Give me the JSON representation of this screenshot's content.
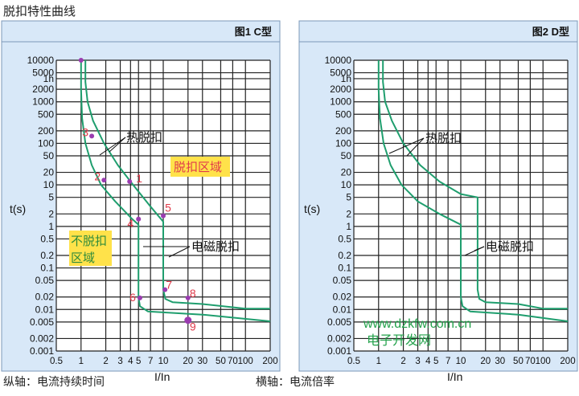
{
  "page": {
    "title": "脱扣特性曲线",
    "caption_left": "纵轴：电流持续时间",
    "caption_right": "横轴：电流倍率",
    "watermark_url": "www.dzkfw.com.cn",
    "watermark_cn": "电子开发网"
  },
  "colors": {
    "panel_bg": "#d8e8f8",
    "panel_border": "#7c98b8",
    "plot_bg": "#ffffff",
    "grid": "#222222",
    "curve": "#1f9e6e",
    "marker": "#9a3cb0",
    "marker_label": "#e03a4a",
    "highlight": "#ffe24a",
    "watermark": "#22a14a"
  },
  "chart_data": [
    {
      "type": "line",
      "title": "图1  C型",
      "xlabel": "I/In",
      "ylabel": "t(s)",
      "x_scale": "log",
      "y_scale": "log",
      "xlim": [
        0.5,
        200
      ],
      "ylim": [
        0.001,
        10000
      ],
      "x_ticks": [
        {
          "v": 0.5,
          "label": "0.5"
        },
        {
          "v": 1,
          "label": "1"
        },
        {
          "v": 2,
          "label": "2"
        },
        {
          "v": 3,
          "label": "3"
        },
        {
          "v": 4,
          "label": "4"
        },
        {
          "v": 5,
          "label": "5"
        },
        {
          "v": 7,
          "label": "7"
        },
        {
          "v": 10,
          "label": "10"
        },
        {
          "v": 20,
          "label": "20"
        },
        {
          "v": 30,
          "label": "30"
        },
        {
          "v": 50,
          "label": "50"
        },
        {
          "v": 70,
          "label": "70"
        },
        {
          "v": 100,
          "label": "100"
        },
        {
          "v": 200,
          "label": "200"
        }
      ],
      "y_ticks": [
        {
          "v": 10000,
          "label": "10000"
        },
        {
          "v": 5000,
          "label": "5000"
        },
        {
          "v": 3600,
          "label": "1h"
        },
        {
          "v": 2000,
          "label": "2000"
        },
        {
          "v": 1000,
          "label": "1000"
        },
        {
          "v": 500,
          "label": "500"
        },
        {
          "v": 200,
          "label": "200"
        },
        {
          "v": 100,
          "label": "100"
        },
        {
          "v": 50,
          "label": "50"
        },
        {
          "v": 20,
          "label": "20"
        },
        {
          "v": 10,
          "label": "10"
        },
        {
          "v": 5,
          "label": "5"
        },
        {
          "v": 2,
          "label": "2"
        },
        {
          "v": 1,
          "label": "1"
        },
        {
          "v": 0.5,
          "label": "0.5"
        },
        {
          "v": 0.2,
          "label": "0.2"
        },
        {
          "v": 0.1,
          "label": "0.1"
        },
        {
          "v": 0.05,
          "label": "0.05"
        },
        {
          "v": 0.02,
          "label": "0.02"
        },
        {
          "v": 0.01,
          "label": "0.01"
        },
        {
          "v": 0.005,
          "label": "0.005"
        },
        {
          "v": 0.002,
          "label": "0.002"
        },
        {
          "v": 0.001,
          "label": "0.001"
        }
      ],
      "series": [
        {
          "points": [
            [
              1.0,
              10000
            ],
            [
              1.0,
              2000
            ],
            [
              1.03,
              400
            ],
            [
              1.13,
              100
            ],
            [
              1.35,
              30
            ],
            [
              1.75,
              10
            ],
            [
              2.6,
              4
            ],
            [
              4.2,
              1.5
            ],
            [
              5.0,
              1.1
            ],
            [
              5.0,
              0.02
            ],
            [
              5.2,
              0.012
            ],
            [
              6.5,
              0.009
            ],
            [
              30,
              0.0075
            ],
            [
              200,
              0.0052
            ]
          ]
        },
        {
          "points": [
            [
              1.13,
              10000
            ],
            [
              1.13,
              3000
            ],
            [
              1.2,
              1000
            ],
            [
              1.4,
              350
            ],
            [
              1.9,
              100
            ],
            [
              2.8,
              30
            ],
            [
              4.3,
              10
            ],
            [
              7.0,
              3
            ],
            [
              10.0,
              1.3
            ],
            [
              10.0,
              0.03
            ],
            [
              10.6,
              0.018
            ],
            [
              13,
              0.015
            ],
            [
              30,
              0.0135
            ],
            [
              100,
              0.0105
            ],
            [
              200,
              0.0105
            ]
          ]
        }
      ],
      "markers": [
        {
          "x": 1.0,
          "y": 10000,
          "label": ""
        },
        {
          "x": 3.9,
          "y": 12,
          "label": "1"
        },
        {
          "x": 1.9,
          "y": 13,
          "label": "2"
        },
        {
          "x": 1.35,
          "y": 150,
          "label": "3"
        },
        {
          "x": 5.0,
          "y": 1.5,
          "label": "4"
        },
        {
          "x": 10.0,
          "y": 1.8,
          "label": "5"
        },
        {
          "x": 5.2,
          "y": 0.019,
          "label": "6"
        },
        {
          "x": 10.5,
          "y": 0.03,
          "label": "7"
        },
        {
          "x": 20,
          "y": 0.019,
          "label": "8"
        },
        {
          "x": 20,
          "y": 0.0055,
          "label": "9"
        }
      ],
      "annotations": [
        {
          "text": "热脱扣"
        },
        {
          "text": "电磁脱扣"
        },
        {
          "text": "脱扣区域"
        },
        {
          "text": "不脱扣"
        },
        {
          "text": "区域"
        }
      ]
    },
    {
      "type": "line",
      "title": "图2  D型",
      "xlabel": "I/In",
      "ylabel": "t(s)",
      "x_scale": "log",
      "y_scale": "log",
      "xlim": [
        0.5,
        200
      ],
      "ylim": [
        0.001,
        10000
      ],
      "series": [
        {
          "points": [
            [
              1.0,
              10000
            ],
            [
              1.0,
              2000
            ],
            [
              1.04,
              400
            ],
            [
              1.15,
              100
            ],
            [
              1.4,
              30
            ],
            [
              1.9,
              10
            ],
            [
              3.0,
              4
            ],
            [
              5.5,
              2
            ],
            [
              10.0,
              1.1
            ],
            [
              10.0,
              0.02
            ],
            [
              10.5,
              0.012
            ],
            [
              13,
              0.009
            ],
            [
              50,
              0.0075
            ],
            [
              200,
              0.0052
            ]
          ]
        },
        {
          "points": [
            [
              1.13,
              10000
            ],
            [
              1.13,
              3000
            ],
            [
              1.2,
              1000
            ],
            [
              1.45,
              350
            ],
            [
              2.0,
              100
            ],
            [
              3.2,
              30
            ],
            [
              5.5,
              12
            ],
            [
              10,
              6
            ],
            [
              16.0,
              5
            ],
            [
              16.0,
              0.03
            ],
            [
              16.8,
              0.018
            ],
            [
              20,
              0.015
            ],
            [
              50,
              0.0135
            ],
            [
              100,
              0.0105
            ],
            [
              200,
              0.0105
            ]
          ]
        }
      ],
      "annotations": [
        {
          "text": "热脱扣"
        },
        {
          "text": "电磁脱扣"
        }
      ]
    }
  ]
}
